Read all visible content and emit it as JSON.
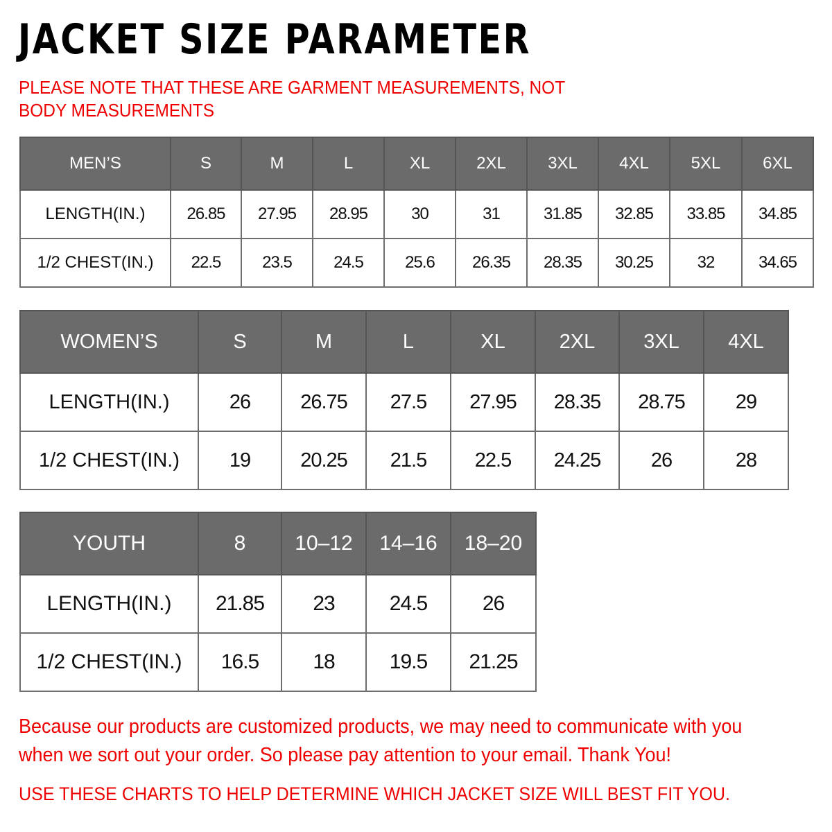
{
  "title": "JACKET  SIZE  PARAMETER",
  "note": "PLEASE NOTE THAT THESE ARE GARMENT MEASUREMENTS, NOT BODY MEASUREMENTS",
  "colors": {
    "header_bg": "#6b6b6b",
    "note_red": "#e00000"
  },
  "tables": [
    {
      "id": "men",
      "header": [
        "MEN’S",
        "S",
        "M",
        "L",
        "XL",
        "2XL",
        "3XL",
        "4XL",
        "5XL",
        "6XL"
      ],
      "rows": [
        [
          "LENGTH(IN.)",
          "26.85",
          "27.95",
          "28.95",
          "30",
          "31",
          "31.85",
          "32.85",
          "33.85",
          "34.85"
        ],
        [
          "1/2 CHEST(IN.)",
          "22.5",
          "23.5",
          "24.5",
          "25.6",
          "26.35",
          "28.35",
          "30.25",
          "32",
          "34.65"
        ]
      ]
    },
    {
      "id": "women",
      "header": [
        "WOMEN’S",
        "S",
        "M",
        "L",
        "XL",
        "2XL",
        "3XL",
        "4XL"
      ],
      "rows": [
        [
          "LENGTH(IN.)",
          "26",
          "26.75",
          "27.5",
          "27.95",
          "28.35",
          "28.75",
          "29"
        ],
        [
          "1/2 CHEST(IN.)",
          "19",
          "20.25",
          "21.5",
          "22.5",
          "24.25",
          "26",
          "28"
        ]
      ]
    },
    {
      "id": "youth",
      "header": [
        "YOUTH",
        "8",
        "10–12",
        "14–16",
        "18–20"
      ],
      "rows": [
        [
          "LENGTH(IN.)",
          "21.85",
          "23",
          "24.5",
          "26"
        ],
        [
          "1/2 CHEST(IN.)",
          "16.5",
          "18",
          "19.5",
          "21.25"
        ]
      ]
    }
  ],
  "footer": {
    "message": "Because our products are customized products, we may need to communicate with you when we sort out your order. So please pay attention to your email. Thank You!",
    "instruction": "USE THESE CHARTS TO HELP DETERMINE WHICH JACKET SIZE WILL BEST FIT YOU."
  }
}
